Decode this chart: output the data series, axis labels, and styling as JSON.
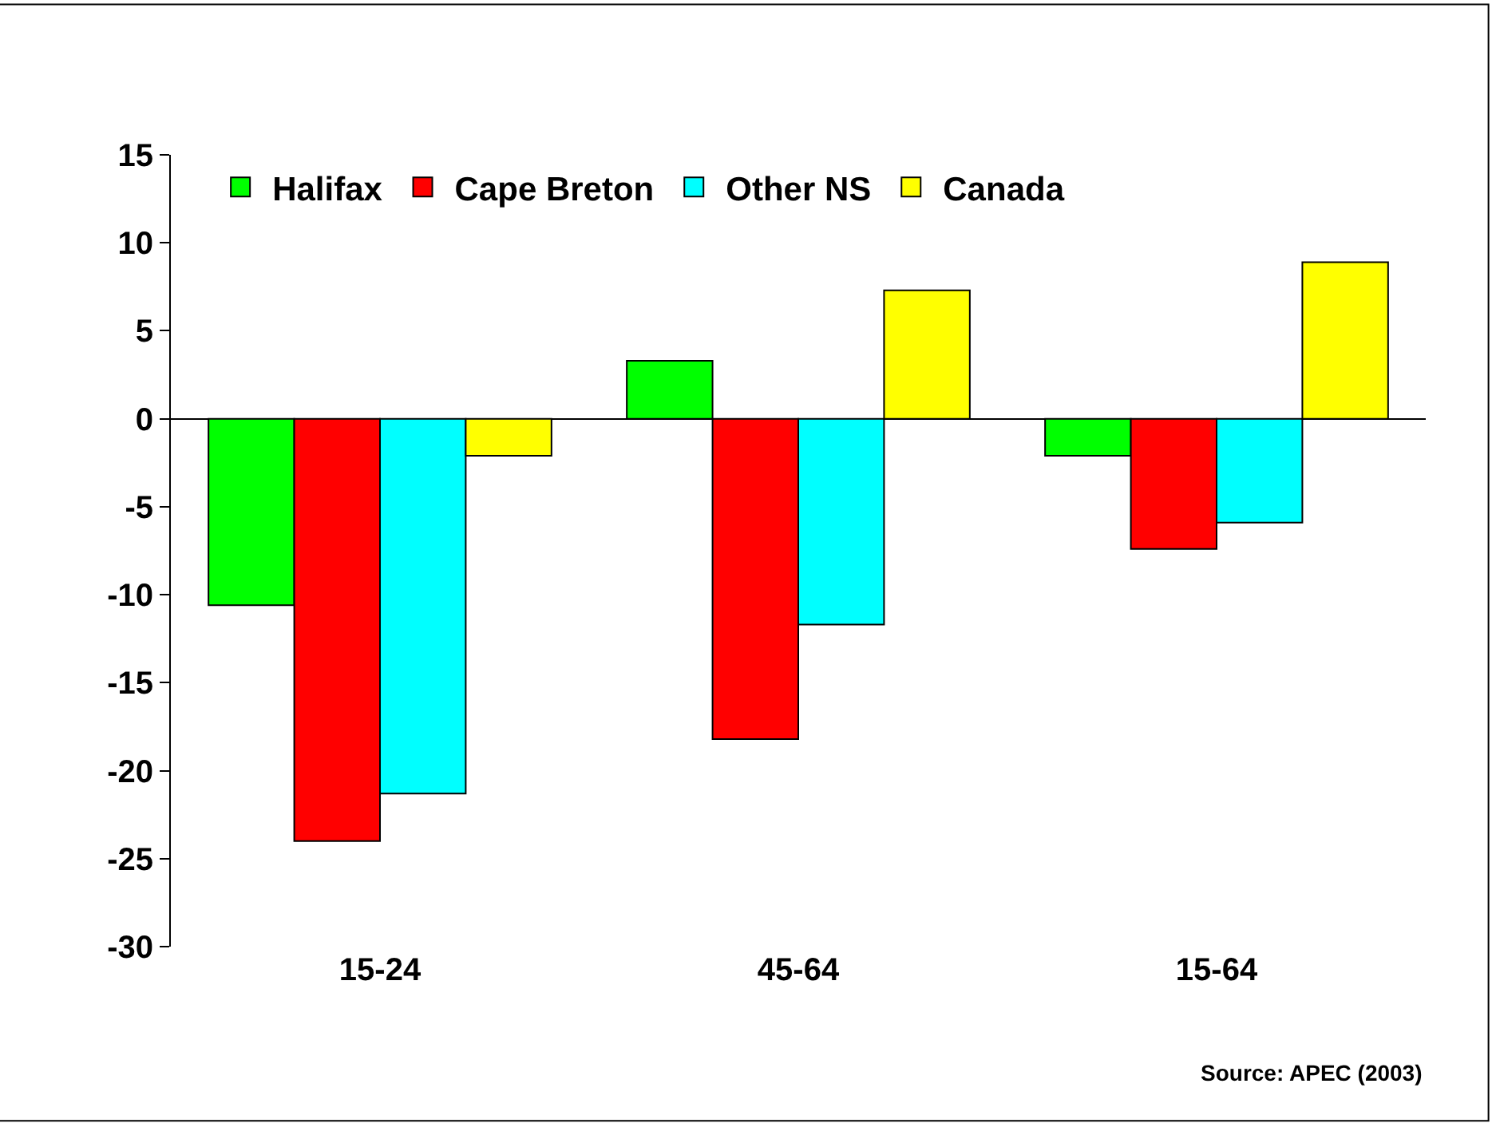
{
  "chart_data": {
    "type": "bar",
    "categories": [
      "15-24",
      "45-64",
      "15-64"
    ],
    "series": [
      {
        "name": "Halifax",
        "color": "#00ff00",
        "values": [
          -10.6,
          3.3,
          -2.1
        ]
      },
      {
        "name": "Cape Breton",
        "color": "#ff0000",
        "values": [
          -24.0,
          -18.2,
          -7.4
        ]
      },
      {
        "name": "Other NS",
        "color": "#00ffff",
        "values": [
          -21.3,
          -11.7,
          -5.9
        ]
      },
      {
        "name": "Canada",
        "color": "#ffff00",
        "values": [
          -2.1,
          7.3,
          8.9
        ]
      }
    ],
    "ylim": [
      -30,
      15
    ],
    "yticks": [
      -30,
      -25,
      -20,
      -15,
      -10,
      -5,
      0,
      5,
      10,
      15
    ],
    "legend": "top",
    "annotations": [
      "Source: APEC (2003)"
    ]
  }
}
